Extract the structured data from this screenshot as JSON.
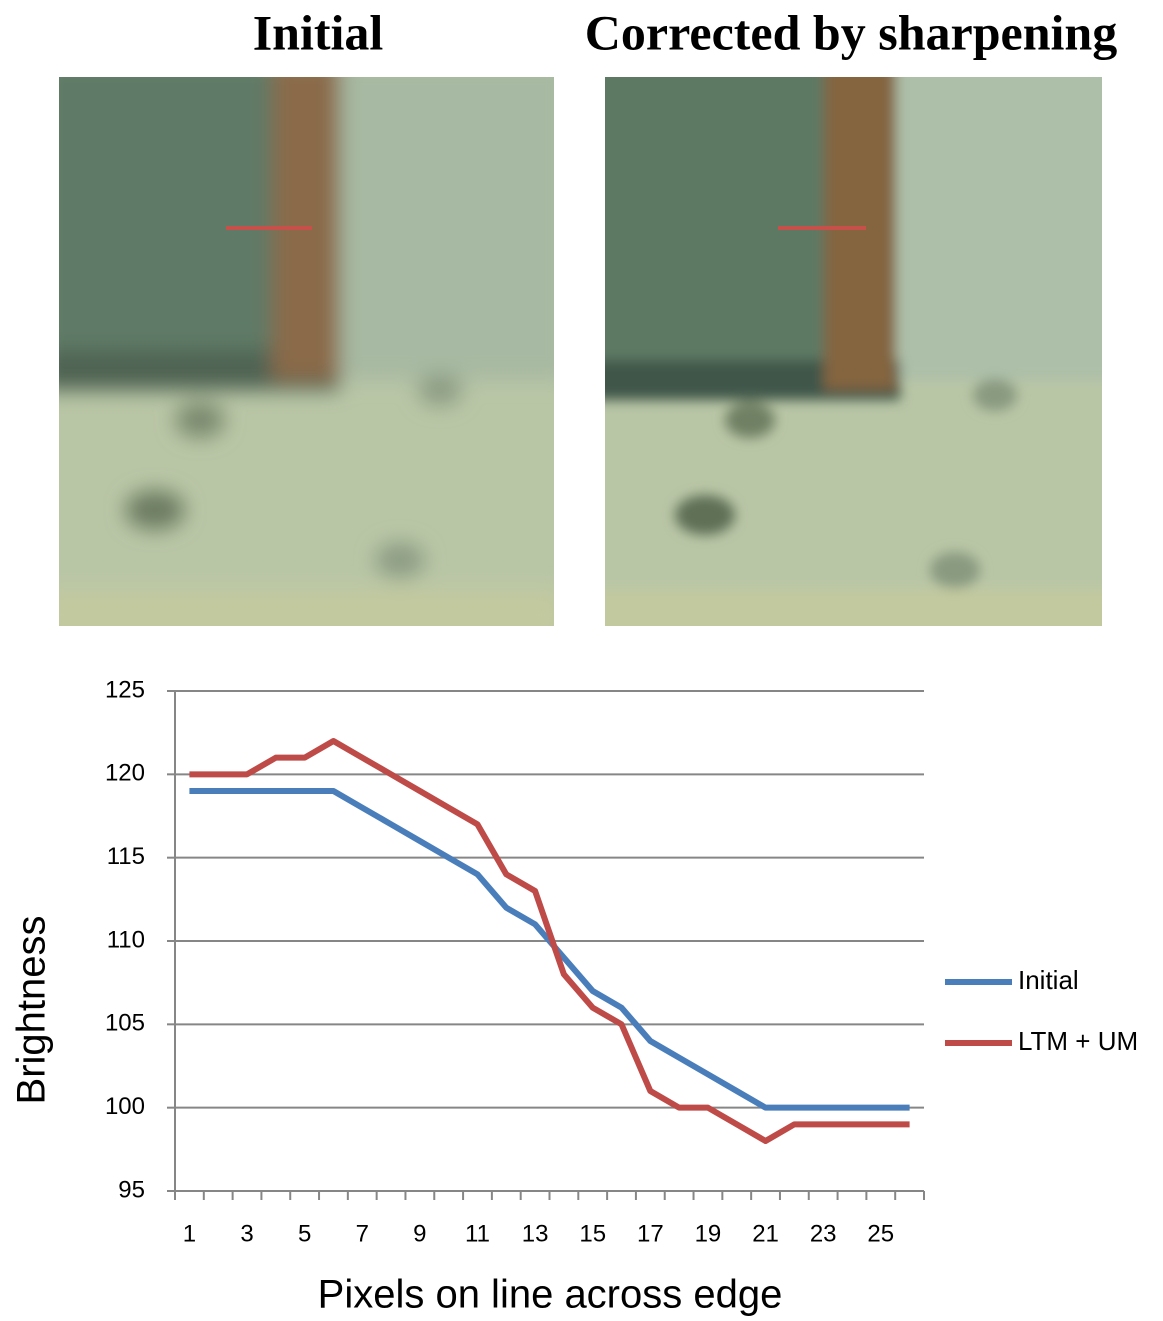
{
  "images": [
    {
      "title": "Initial"
    },
    {
      "title": "Corrected by sharpening"
    }
  ],
  "chart_data": {
    "type": "line",
    "x_label": "Pixels on line across edge",
    "y_label": "Brightness",
    "categories": [
      1,
      null,
      3,
      null,
      5,
      null,
      7,
      null,
      9,
      null,
      11,
      null,
      13,
      null,
      15,
      null,
      17,
      null,
      19,
      null,
      21,
      null,
      23,
      null,
      25,
      null
    ],
    "series": [
      {
        "name": "Initial",
        "color": "#4a7ebb",
        "values": [
          119,
          119,
          119,
          119,
          119,
          119,
          118,
          117,
          116,
          115,
          114,
          112,
          111,
          109,
          107,
          106,
          104,
          103,
          102,
          101,
          100,
          100,
          100,
          100,
          100,
          100
        ]
      },
      {
        "name": "LTM + UM",
        "color": "#be4b48",
        "values": [
          120,
          120,
          120,
          121,
          121,
          122,
          121,
          120,
          119,
          118,
          117,
          114,
          113,
          108,
          106,
          105,
          101,
          100,
          100,
          99,
          98,
          99,
          99,
          99,
          99,
          99
        ]
      }
    ],
    "ylim": [
      95,
      125
    ],
    "yticks": [
      95,
      100,
      105,
      110,
      115,
      120,
      125
    ],
    "grid": true,
    "legend": "right"
  }
}
